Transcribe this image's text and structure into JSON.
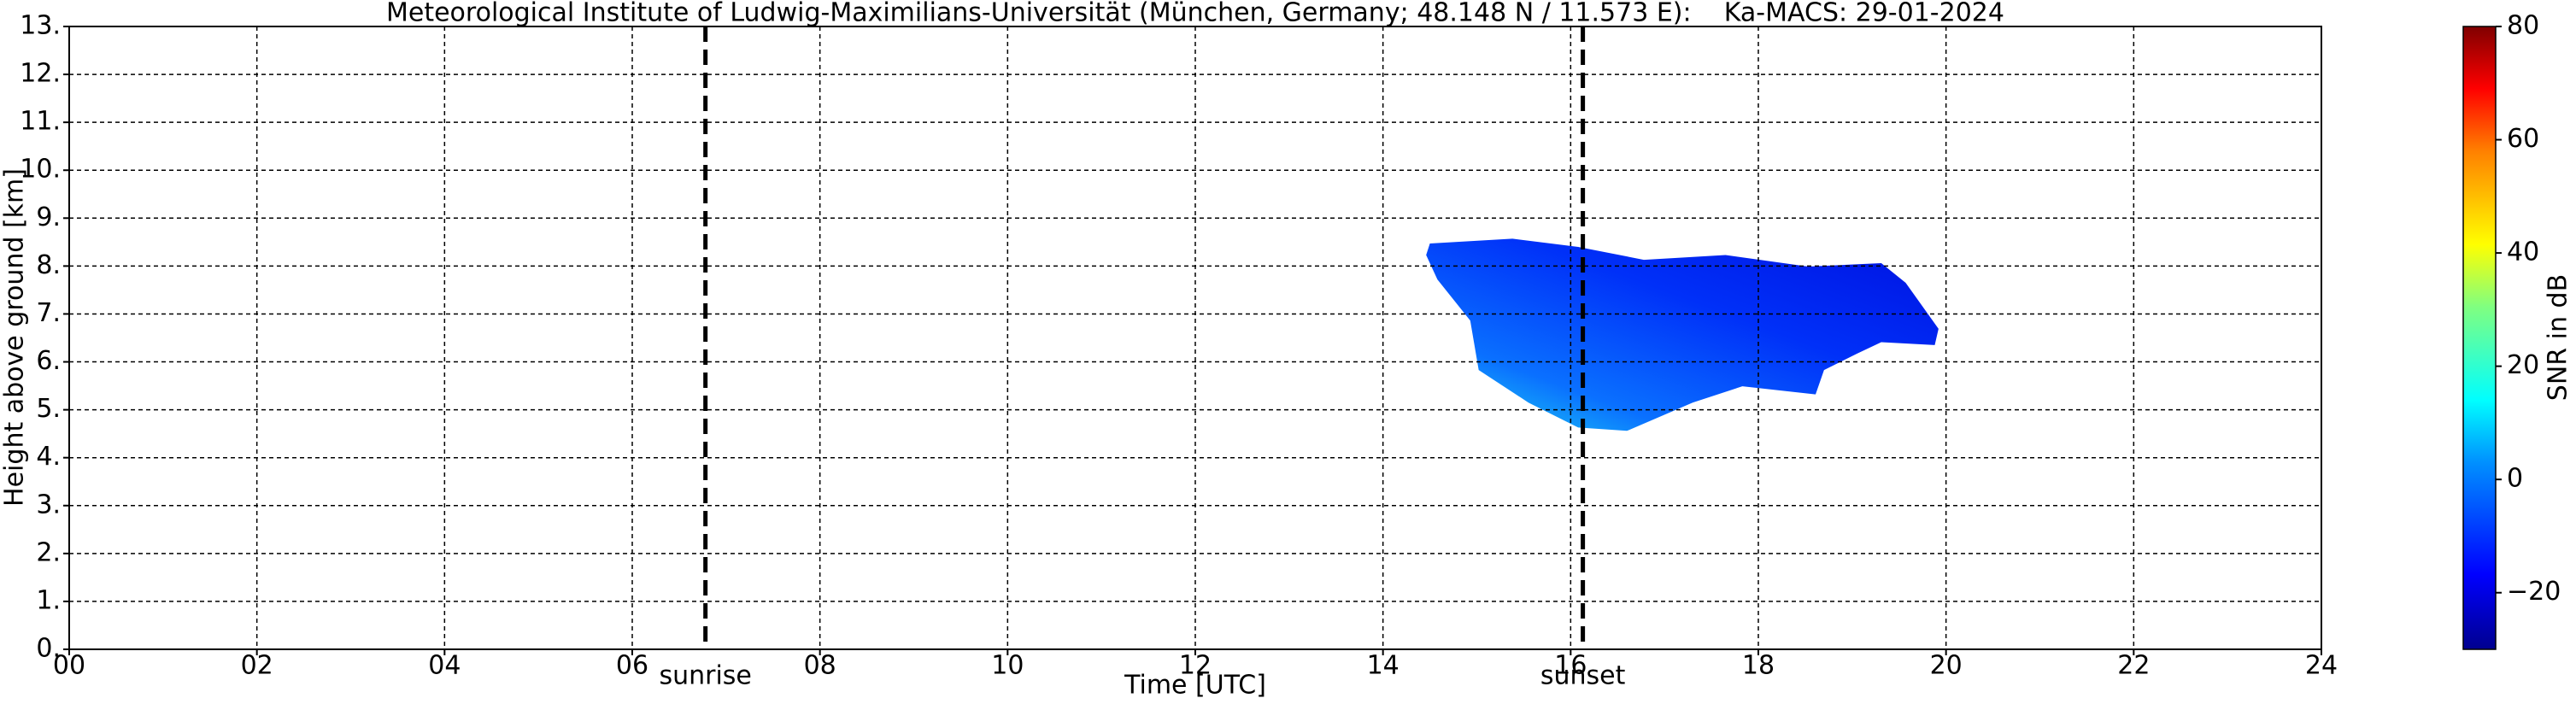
{
  "chart_data": {
    "type": "heatmap",
    "title": "Meteorological Institute of Ludwig-Maximilians-Universität (München, Germany; 48.148 N / 11.573 E):    Ka-MACS: 29-01-2024",
    "xlabel": "Time [UTC]",
    "ylabel": "Height above ground [km]",
    "xlim": [
      0,
      24
    ],
    "xticks": [
      {
        "value": 0,
        "label": "00"
      },
      {
        "value": 2,
        "label": "02"
      },
      {
        "value": 4,
        "label": "04"
      },
      {
        "value": 6,
        "label": "06"
      },
      {
        "value": 8,
        "label": "08"
      },
      10,
      12,
      14,
      16,
      18,
      20,
      22,
      24
    ],
    "ylim": [
      0,
      13
    ],
    "yticks": [
      {
        "value": 0,
        "label": "0."
      },
      {
        "value": 1,
        "label": "1."
      },
      {
        "value": 2,
        "label": "2."
      },
      {
        "value": 3,
        "label": "3."
      },
      {
        "value": 4,
        "label": "4."
      },
      {
        "value": 5,
        "label": "5."
      },
      {
        "value": 6,
        "label": "6."
      },
      {
        "value": 7,
        "label": "7."
      },
      {
        "value": 8,
        "label": "8."
      },
      {
        "value": 9,
        "label": "9."
      },
      {
        "value": 10,
        "label": "10."
      },
      {
        "value": 11,
        "label": "11."
      },
      {
        "value": 12,
        "label": "12."
      },
      {
        "value": 13,
        "label": "13."
      }
    ],
    "grid": true,
    "echo_outline": {
      "x": [
        14.5,
        15.38,
        16.08,
        16.78,
        17.65,
        18.53,
        19.31,
        19.57,
        19.92,
        19.88,
        19.31,
        19.05,
        18.7,
        18.61,
        17.83,
        17.3,
        16.6,
        16.08,
        15.55,
        15.02,
        14.93,
        14.58,
        14.46
      ],
      "y": [
        8.47,
        8.57,
        8.4,
        8.13,
        8.23,
        7.99,
        8.06,
        7.65,
        6.69,
        6.35,
        6.41,
        6.17,
        5.83,
        5.32,
        5.49,
        5.15,
        4.56,
        4.63,
        5.15,
        5.83,
        6.86,
        7.72,
        8.23
      ]
    },
    "annotations": [
      {
        "label": "sunrise",
        "x": 6.78
      },
      {
        "label": "sunset",
        "x": 16.13
      }
    ],
    "colorbar": {
      "label": "SNR in dB",
      "lim": [
        -30,
        80
      ],
      "ticks": [
        {
          "value": -20,
          "label": "−20"
        },
        0,
        20,
        40,
        60,
        80
      ]
    }
  }
}
